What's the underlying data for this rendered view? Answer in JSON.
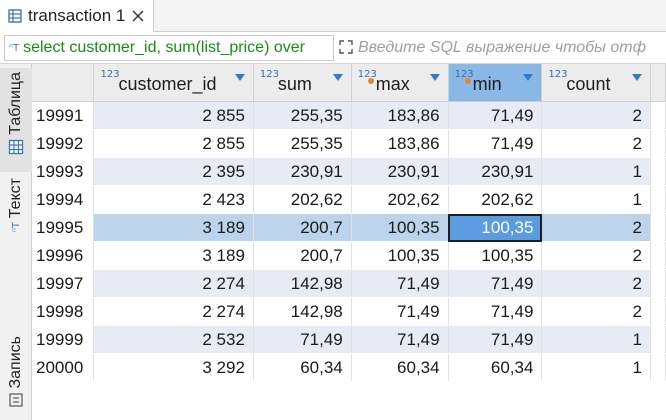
{
  "tab": {
    "title": "transaction 1",
    "icon": "table-icon",
    "close_icon": "close-icon"
  },
  "filter": {
    "query_text": "select customer_id, sum(list_price) over",
    "placeholder": "Введите SQL выражение чтобы отф",
    "expand_icon": "expand-icon"
  },
  "side_panel": {
    "tabs": [
      {
        "label": "Таблица",
        "icon": "grid-icon",
        "active": true
      },
      {
        "label": "Текст",
        "icon": "text-icon",
        "active": false
      },
      {
        "label": "Запись",
        "icon": "record-icon",
        "active": false
      }
    ]
  },
  "grid": {
    "type_tag": "123",
    "columns": [
      {
        "name": "customer_id",
        "key": false,
        "selected": false
      },
      {
        "name": "sum",
        "key": false,
        "selected": false
      },
      {
        "name": "max",
        "key": true,
        "selected": false
      },
      {
        "name": "min",
        "key": true,
        "selected": true
      },
      {
        "name": "count",
        "key": false,
        "selected": false
      }
    ],
    "rows": [
      {
        "n": "19991",
        "cells": [
          "2 855",
          "255,35",
          "183,86",
          "71,49",
          "2"
        ]
      },
      {
        "n": "19992",
        "cells": [
          "2 855",
          "255,35",
          "183,86",
          "71,49",
          "2"
        ]
      },
      {
        "n": "19993",
        "cells": [
          "2 395",
          "230,91",
          "230,91",
          "230,91",
          "1"
        ]
      },
      {
        "n": "19994",
        "cells": [
          "2 423",
          "202,62",
          "202,62",
          "202,62",
          "1"
        ]
      },
      {
        "n": "19995",
        "cells": [
          "3 189",
          "200,7",
          "100,35",
          "100,35",
          "2"
        ],
        "selected_row": true,
        "selected_cell": 3
      },
      {
        "n": "19996",
        "cells": [
          "3 189",
          "200,7",
          "100,35",
          "100,35",
          "2"
        ]
      },
      {
        "n": "19997",
        "cells": [
          "2 274",
          "142,98",
          "71,49",
          "71,49",
          "2"
        ]
      },
      {
        "n": "19998",
        "cells": [
          "2 274",
          "142,98",
          "71,49",
          "71,49",
          "2"
        ]
      },
      {
        "n": "19999",
        "cells": [
          "2 532",
          "71,49",
          "71,49",
          "71,49",
          "1"
        ]
      },
      {
        "n": "20000",
        "cells": [
          "3 292",
          "60,34",
          "60,34",
          "60,34",
          "1"
        ]
      }
    ]
  },
  "colors": {
    "stripe": "#e6ebf5",
    "selected_row": "#bcd3ec",
    "selected_cell": "#5b9be0",
    "selected_header": "#8ab8e6",
    "query_text": "#1a8a1a"
  }
}
